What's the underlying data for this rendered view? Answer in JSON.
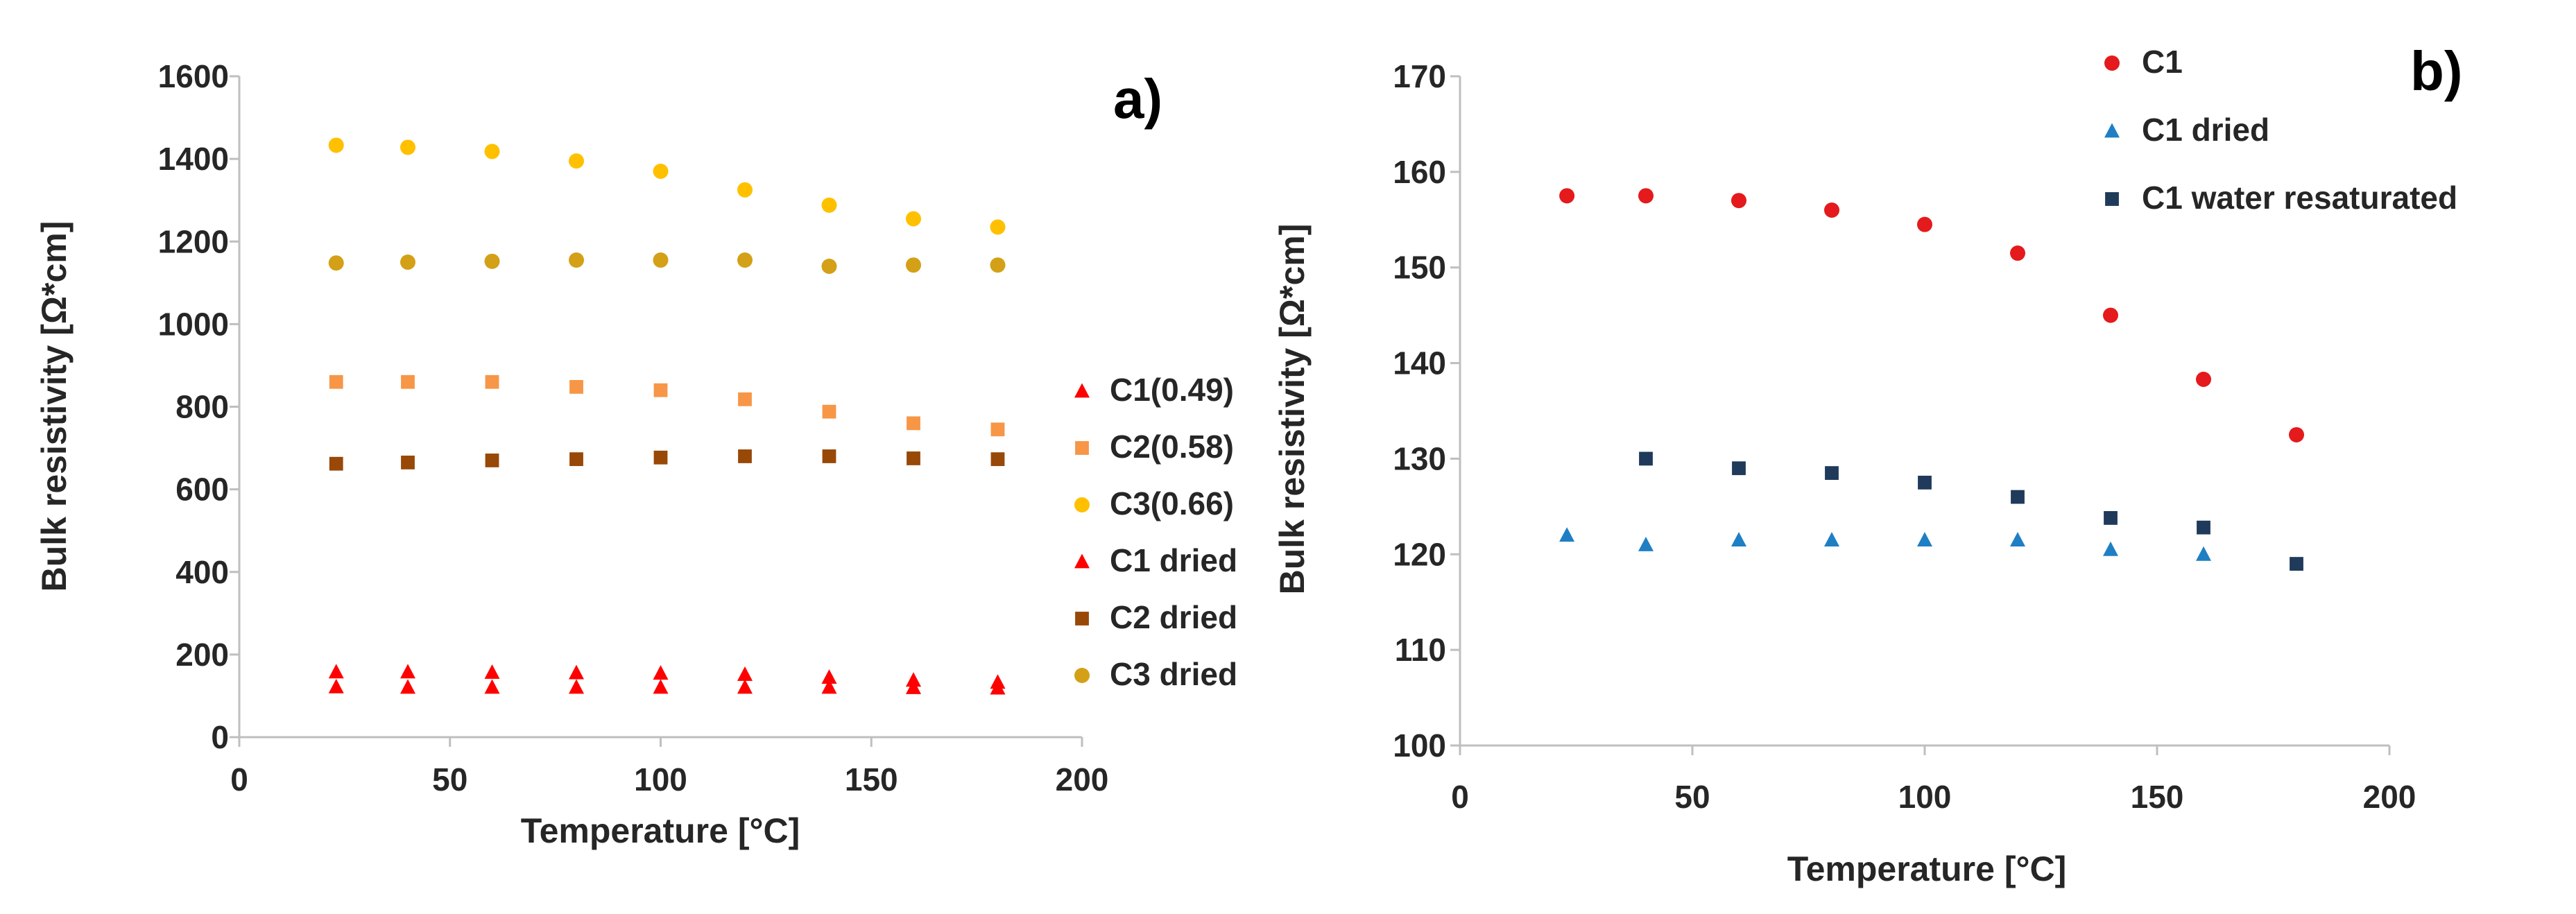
{
  "chart_data": [
    {
      "type": "scatter",
      "panel_label": "a)",
      "xlabel": "Temperature [°C]",
      "ylabel": "Bulk resistivity [Ω*cm]",
      "xlim": [
        0,
        200
      ],
      "ylim": [
        0,
        1600
      ],
      "xticks": [
        "0",
        "50",
        "100",
        "150",
        "200"
      ],
      "yticks": [
        "0",
        "200",
        "400",
        "600",
        "800",
        "1000",
        "1200",
        "1400",
        "1600"
      ],
      "legend_position": "right",
      "series": [
        {
          "name": "C1(0.49)",
          "marker": "triangle",
          "color": "#ff0000",
          "x": [
            23,
            40,
            60,
            80,
            100,
            120,
            140,
            160,
            180
          ],
          "y": [
            158,
            158,
            157,
            156,
            155,
            152,
            145,
            138,
            133
          ]
        },
        {
          "name": "C2(0.58)",
          "marker": "square",
          "color": "#f79646",
          "x": [
            23,
            40,
            60,
            80,
            100,
            120,
            140,
            160,
            180
          ],
          "y": [
            860,
            860,
            860,
            848,
            840,
            818,
            788,
            760,
            745
          ]
        },
        {
          "name": "C3(0.66)",
          "marker": "circle",
          "color": "#ffc000",
          "x": [
            23,
            40,
            60,
            80,
            100,
            120,
            140,
            160,
            180
          ],
          "y": [
            1433,
            1428,
            1418,
            1395,
            1370,
            1325,
            1288,
            1255,
            1235
          ]
        },
        {
          "name": "C1 dried",
          "marker": "triangle",
          "color": "#ff0000",
          "x": [
            23,
            40,
            60,
            80,
            100,
            120,
            140,
            160,
            180
          ],
          "y": [
            122,
            121,
            121,
            121,
            121,
            121,
            121,
            120,
            119
          ]
        },
        {
          "name": "C2 dried",
          "marker": "square",
          "color": "#984807",
          "x": [
            23,
            40,
            60,
            80,
            100,
            120,
            140,
            160,
            180
          ],
          "y": [
            662,
            665,
            670,
            673,
            677,
            680,
            680,
            675,
            673
          ]
        },
        {
          "name": "C3 dried",
          "marker": "circle",
          "color": "#d4a017",
          "x": [
            23,
            40,
            60,
            80,
            100,
            120,
            140,
            160,
            180
          ],
          "y": [
            1148,
            1150,
            1152,
            1155,
            1155,
            1155,
            1140,
            1143,
            1143
          ]
        }
      ]
    },
    {
      "type": "scatter",
      "panel_label": "b)",
      "xlabel": "Temperature [°C]",
      "ylabel": "Bulk resistivity [Ω*cm]",
      "xlim": [
        0,
        200
      ],
      "ylim": [
        100,
        170
      ],
      "xticks": [
        "0",
        "50",
        "100",
        "150",
        "200"
      ],
      "yticks": [
        "100",
        "110",
        "120",
        "130",
        "140",
        "150",
        "160",
        "170"
      ],
      "legend_position": "top-right",
      "series": [
        {
          "name": "C1",
          "marker": "circle",
          "color": "#e41a1c",
          "x": [
            23,
            40,
            60,
            80,
            100,
            120,
            140,
            160,
            180
          ],
          "y": [
            157.5,
            157.5,
            157,
            156,
            154.5,
            151.5,
            145,
            138.3,
            132.5
          ]
        },
        {
          "name": "C1 dried",
          "marker": "triangle",
          "color": "#1f7fc4",
          "x": [
            23,
            40,
            60,
            80,
            100,
            120,
            140,
            160
          ],
          "y": [
            122,
            121,
            121.5,
            121.5,
            121.5,
            121.5,
            120.5,
            120
          ]
        },
        {
          "name": "C1 water resaturated",
          "marker": "square",
          "color": "#1f3a5a",
          "x": [
            40,
            60,
            80,
            100,
            120,
            140,
            160,
            180
          ],
          "y": [
            130,
            129,
            128.5,
            127.5,
            126,
            123.8,
            122.8,
            119
          ]
        }
      ]
    }
  ]
}
